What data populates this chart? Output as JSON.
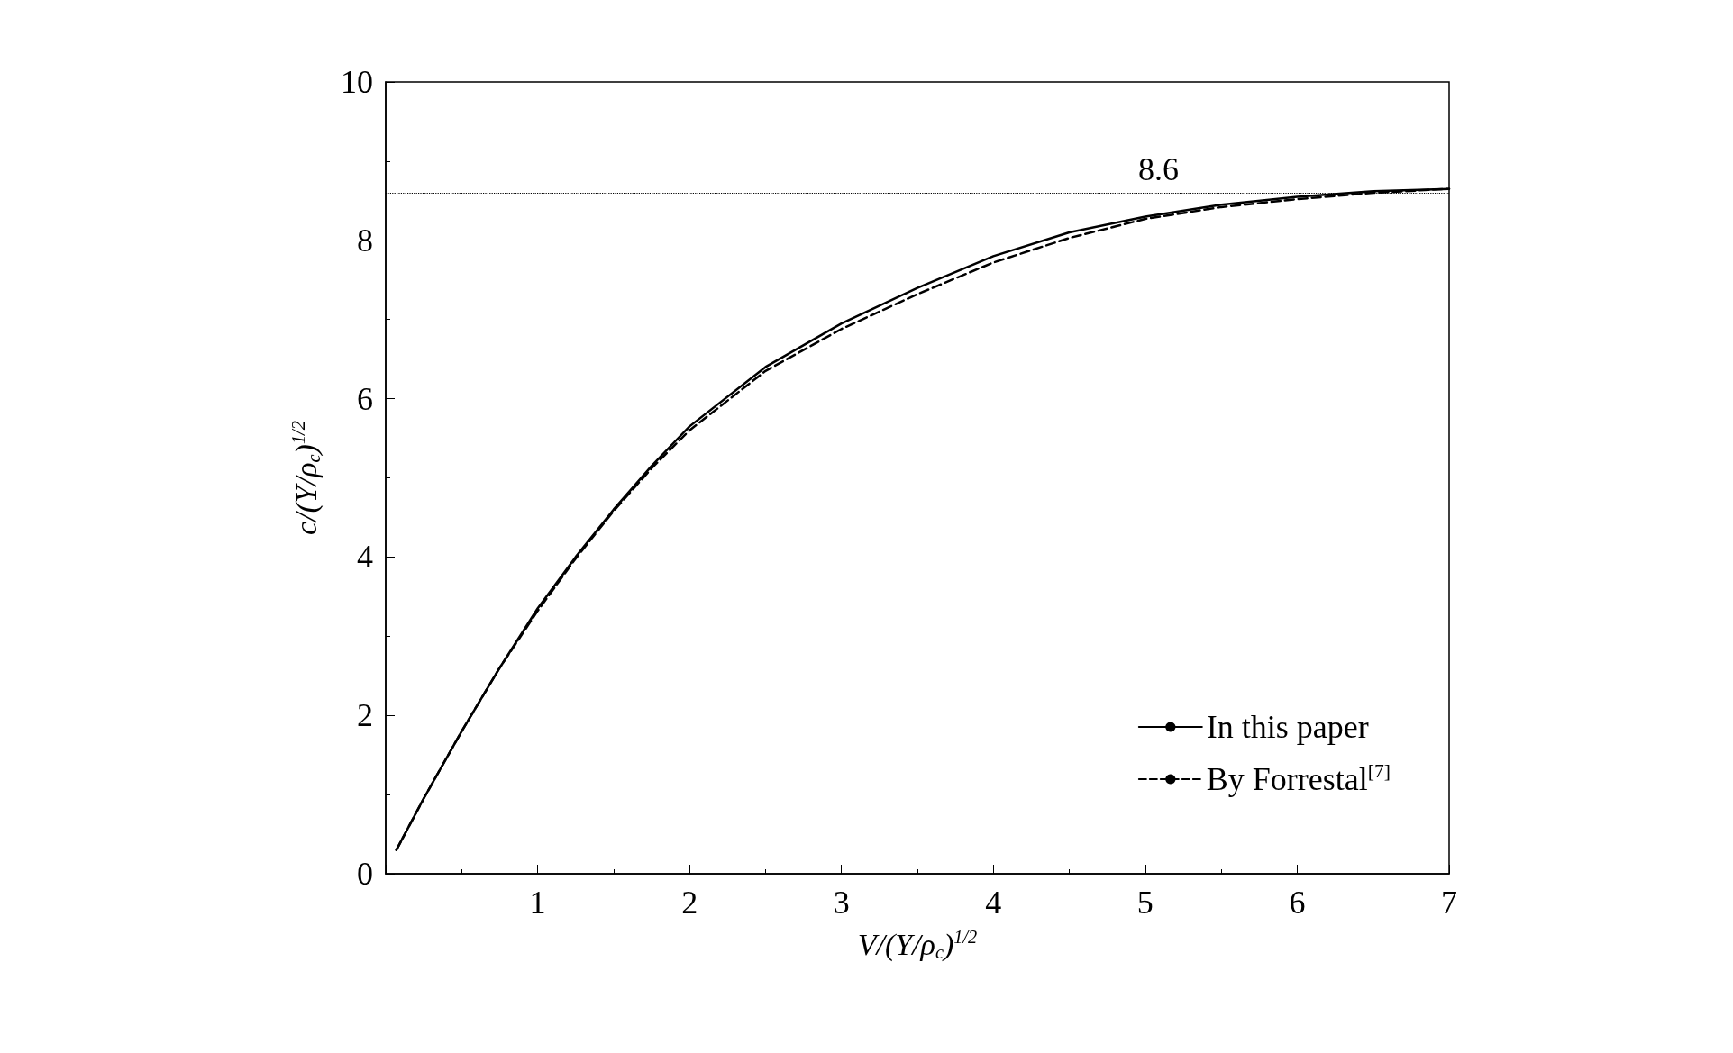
{
  "chart_data": {
    "type": "line",
    "xlabel": "V/(Y/ρ$_{c}$)$^{1/2}$",
    "ylabel": "c/(Y/ρ$_{c}$)$^{1/2}$",
    "xlim": [
      0,
      7
    ],
    "xticks": [
      {
        "value": 0,
        "label": null
      },
      1,
      2,
      3,
      4,
      5,
      6,
      7
    ],
    "ylim": [
      0,
      10
    ],
    "yticks": [
      0,
      2,
      4,
      6,
      8,
      10
    ],
    "grid": false,
    "legend": "bottom right",
    "marker": "none",
    "ref_lines": [
      {
        "axis": "y",
        "value": 8.6,
        "label": "8.6",
        "line_style": "dotted"
      }
    ],
    "series": [
      {
        "name": "In this paper",
        "color": "#000000",
        "line_style": "solid",
        "x": [
          0.07,
          0.25,
          0.5,
          0.75,
          1,
          1.25,
          1.5,
          1.75,
          2,
          2.5,
          3,
          3.5,
          4,
          4.5,
          5,
          5.5,
          6,
          6.5,
          7
        ],
        "values": [
          0.3,
          0.95,
          1.8,
          2.6,
          3.35,
          4.0,
          4.6,
          5.15,
          5.65,
          6.4,
          6.95,
          7.4,
          7.8,
          8.1,
          8.3,
          8.45,
          8.55,
          8.62,
          8.65
        ]
      },
      {
        "name": "By Forrestal$^{[7]}$",
        "color": "#000000",
        "line_style": "dashed",
        "x": [
          0.07,
          0.25,
          0.5,
          0.75,
          1,
          1.25,
          1.5,
          1.75,
          2,
          2.5,
          3,
          3.5,
          4,
          4.5,
          5,
          5.5,
          6,
          6.5,
          7
        ],
        "values": [
          0.3,
          0.95,
          1.8,
          2.6,
          3.32,
          3.98,
          4.58,
          5.12,
          5.6,
          6.35,
          6.88,
          7.32,
          7.72,
          8.03,
          8.27,
          8.42,
          8.52,
          8.6,
          8.65
        ]
      }
    ]
  }
}
